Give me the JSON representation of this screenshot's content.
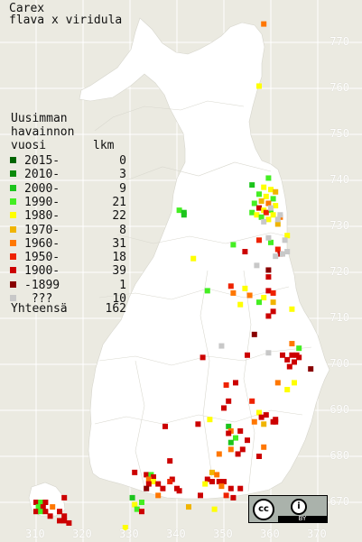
{
  "title": {
    "line1": "Carex",
    "line2": "flava x viridula"
  },
  "legend": {
    "header": [
      "Uusimman",
      "havainnon",
      "vuosi"
    ],
    "count_header": "lkm",
    "rows": [
      {
        "label": "2015-",
        "count": "0",
        "color": "#006400"
      },
      {
        "label": "2010-",
        "count": "3",
        "color": "#0a8a0a"
      },
      {
        "label": "2000-",
        "count": "9",
        "color": "#1cc41c"
      },
      {
        "label": "1990-",
        "count": "21",
        "color": "#44ee22"
      },
      {
        "label": "1980-",
        "count": "22",
        "color": "#ffff00"
      },
      {
        "label": "1970-",
        "count": "8",
        "color": "#f0b400"
      },
      {
        "label": "1960-",
        "count": "31",
        "color": "#ff7700"
      },
      {
        "label": "1950-",
        "count": "18",
        "color": "#ee2200"
      },
      {
        "label": "1900-",
        "count": "39",
        "color": "#cc0000"
      },
      {
        "label": "-1899",
        "count": "1",
        "color": "#880000"
      },
      {
        "label": " ???",
        "count": "10",
        "color": "#c8c8c8"
      }
    ],
    "total_label": "Yhteensä",
    "total_count": "162"
  },
  "grid_ticks": {
    "north": [
      "770",
      "760",
      "750",
      "740",
      "730",
      "720",
      "710",
      "700",
      "690",
      "680",
      "670"
    ],
    "east": [
      "310",
      "320",
      "330",
      "340",
      "350",
      "360",
      "370"
    ]
  },
  "license": {
    "cc": "cc",
    "by": "BY"
  },
  "observations": [
    {
      "e": 358.5,
      "n": 774,
      "p": 6
    },
    {
      "e": 357.5,
      "n": 760.5,
      "p": 4
    },
    {
      "e": 359.5,
      "n": 740.5,
      "p": 3
    },
    {
      "e": 356,
      "n": 739,
      "p": 2
    },
    {
      "e": 358.5,
      "n": 738.5,
      "p": 4
    },
    {
      "e": 360,
      "n": 738,
      "p": 4
    },
    {
      "e": 361,
      "n": 737.5,
      "p": 5
    },
    {
      "e": 357.5,
      "n": 737,
      "p": 3
    },
    {
      "e": 359,
      "n": 736.5,
      "p": 4
    },
    {
      "e": 360.5,
      "n": 736,
      "p": 3
    },
    {
      "e": 358,
      "n": 735.5,
      "p": 5
    },
    {
      "e": 356.5,
      "n": 735,
      "p": 3
    },
    {
      "e": 359.5,
      "n": 735,
      "p": 6
    },
    {
      "e": 361,
      "n": 734.5,
      "p": 4
    },
    {
      "e": 357.5,
      "n": 734,
      "p": 8
    },
    {
      "e": 358.5,
      "n": 733.5,
      "p": 4
    },
    {
      "e": 360,
      "n": 733.5,
      "p": 3
    },
    {
      "e": 356,
      "n": 733,
      "p": 3
    },
    {
      "e": 359,
      "n": 733,
      "p": 7
    },
    {
      "e": 357,
      "n": 732.5,
      "p": 4
    },
    {
      "e": 360.5,
      "n": 732.5,
      "p": 4
    },
    {
      "e": 362,
      "n": 732,
      "p": 6
    },
    {
      "e": 358,
      "n": 732,
      "p": 3
    },
    {
      "e": 359.5,
      "n": 731.5,
      "p": 4
    },
    {
      "e": 361.5,
      "n": 730.5,
      "p": 5
    },
    {
      "e": 363.5,
      "n": 728,
      "p": 4
    },
    {
      "e": 363,
      "n": 727,
      "p": 10
    },
    {
      "e": 357.5,
      "n": 727,
      "p": 7
    },
    {
      "e": 360,
      "n": 726.5,
      "p": 3
    },
    {
      "e": 352,
      "n": 726,
      "p": 3
    },
    {
      "e": 354.5,
      "n": 724.5,
      "p": 8
    },
    {
      "e": 361.5,
      "n": 725,
      "p": 7
    },
    {
      "e": 362,
      "n": 724,
      "p": 8
    },
    {
      "e": 361,
      "n": 723.5,
      "p": 10
    },
    {
      "e": 343.5,
      "n": 723,
      "p": 4
    },
    {
      "e": 340.5,
      "n": 733.5,
      "p": 3
    },
    {
      "e": 341.5,
      "n": 733,
      "p": 2
    },
    {
      "e": 341.5,
      "n": 732.5,
      "p": 2
    },
    {
      "e": 359.5,
      "n": 720.5,
      "p": 9
    },
    {
      "e": 359.5,
      "n": 719,
      "p": 8
    },
    {
      "e": 351.5,
      "n": 717,
      "p": 7
    },
    {
      "e": 352,
      "n": 715.5,
      "p": 6
    },
    {
      "e": 354.5,
      "n": 716.5,
      "p": 4
    },
    {
      "e": 355.5,
      "n": 715,
      "p": 6
    },
    {
      "e": 359.5,
      "n": 716,
      "p": 8
    },
    {
      "e": 360.5,
      "n": 715.5,
      "p": 7
    },
    {
      "e": 358.5,
      "n": 714.5,
      "p": 4
    },
    {
      "e": 360.5,
      "n": 713.5,
      "p": 5
    },
    {
      "e": 357.5,
      "n": 713.5,
      "p": 3
    },
    {
      "e": 353.5,
      "n": 713,
      "p": 4
    },
    {
      "e": 360.5,
      "n": 711.5,
      "p": 8
    },
    {
      "e": 359.5,
      "n": 710.5,
      "p": 8
    },
    {
      "e": 364.5,
      "n": 712,
      "p": 4
    },
    {
      "e": 346.5,
      "n": 716,
      "p": 3
    },
    {
      "e": 356.5,
      "n": 706.5,
      "p": 9
    },
    {
      "e": 364.5,
      "n": 704.5,
      "p": 6
    },
    {
      "e": 366,
      "n": 703.5,
      "p": 3
    },
    {
      "e": 362.5,
      "n": 702,
      "p": 8
    },
    {
      "e": 355,
      "n": 702,
      "p": 8
    },
    {
      "e": 359.5,
      "n": 702.5,
      "p": 10
    },
    {
      "e": 364.5,
      "n": 702,
      "p": 8
    },
    {
      "e": 365.5,
      "n": 702,
      "p": 8
    },
    {
      "e": 366,
      "n": 701.5,
      "p": 8
    },
    {
      "e": 363.5,
      "n": 701,
      "p": 8
    },
    {
      "e": 365,
      "n": 700.5,
      "p": 8
    },
    {
      "e": 364,
      "n": 699.5,
      "p": 8
    },
    {
      "e": 368.5,
      "n": 699,
      "p": 9
    },
    {
      "e": 345.5,
      "n": 701.5,
      "p": 8
    },
    {
      "e": 352.5,
      "n": 696,
      "p": 8
    },
    {
      "e": 350.5,
      "n": 695.5,
      "p": 7
    },
    {
      "e": 361.5,
      "n": 696,
      "p": 6
    },
    {
      "e": 365,
      "n": 696,
      "p": 4
    },
    {
      "e": 363.5,
      "n": 694.5,
      "p": 4
    },
    {
      "e": 351,
      "n": 692,
      "p": 8
    },
    {
      "e": 356,
      "n": 692,
      "p": 7
    },
    {
      "e": 350,
      "n": 690.5,
      "p": 8
    },
    {
      "e": 357.5,
      "n": 689.5,
      "p": 4
    },
    {
      "e": 358,
      "n": 688.5,
      "p": 8
    },
    {
      "e": 359,
      "n": 689,
      "p": 8
    },
    {
      "e": 361,
      "n": 688,
      "p": 8
    },
    {
      "e": 360.5,
      "n": 687.5,
      "p": 8
    },
    {
      "e": 361,
      "n": 687.5,
      "p": 8
    },
    {
      "e": 356.5,
      "n": 687.5,
      "p": 6
    },
    {
      "e": 358.5,
      "n": 687,
      "p": 5
    },
    {
      "e": 347,
      "n": 688,
      "p": 4
    },
    {
      "e": 344.5,
      "n": 687,
      "p": 8
    },
    {
      "e": 337.5,
      "n": 686.5,
      "p": 8
    },
    {
      "e": 351,
      "n": 686.5,
      "p": 2
    },
    {
      "e": 351.5,
      "n": 685.5,
      "p": 6
    },
    {
      "e": 351,
      "n": 685,
      "p": 8
    },
    {
      "e": 353.5,
      "n": 685.5,
      "p": 8
    },
    {
      "e": 352.5,
      "n": 684,
      "p": 3
    },
    {
      "e": 351.5,
      "n": 683,
      "p": 2
    },
    {
      "e": 355,
      "n": 683.5,
      "p": 8
    },
    {
      "e": 354,
      "n": 681.5,
      "p": 8
    },
    {
      "e": 351.5,
      "n": 681.5,
      "p": 6
    },
    {
      "e": 358.5,
      "n": 682,
      "p": 6
    },
    {
      "e": 357.5,
      "n": 680,
      "p": 8
    },
    {
      "e": 353,
      "n": 680.5,
      "p": 8
    },
    {
      "e": 349,
      "n": 680.5,
      "p": 6
    },
    {
      "e": 338.5,
      "n": 679,
      "p": 8
    },
    {
      "e": 331,
      "n": 676.5,
      "p": 8
    },
    {
      "e": 333.5,
      "n": 676,
      "p": 8
    },
    {
      "e": 334.5,
      "n": 676,
      "p": 3
    },
    {
      "e": 335,
      "n": 675.5,
      "p": 8
    },
    {
      "e": 334,
      "n": 675,
      "p": 6
    },
    {
      "e": 335,
      "n": 674.5,
      "p": 4
    },
    {
      "e": 334,
      "n": 674,
      "p": 8
    },
    {
      "e": 333.5,
      "n": 673,
      "p": 9
    },
    {
      "e": 337,
      "n": 673,
      "p": 8
    },
    {
      "e": 336,
      "n": 674,
      "p": 8
    },
    {
      "e": 339,
      "n": 675,
      "p": 8
    },
    {
      "e": 338.5,
      "n": 674.5,
      "p": 7
    },
    {
      "e": 340,
      "n": 673,
      "p": 8
    },
    {
      "e": 340.5,
      "n": 672.5,
      "p": 8
    },
    {
      "e": 347.5,
      "n": 676.5,
      "p": 5
    },
    {
      "e": 348.5,
      "n": 676,
      "p": 6
    },
    {
      "e": 346.5,
      "n": 675,
      "p": 8
    },
    {
      "e": 347.5,
      "n": 674.5,
      "p": 8
    },
    {
      "e": 349,
      "n": 674.5,
      "p": 8
    },
    {
      "e": 350,
      "n": 674.5,
      "p": 8
    },
    {
      "e": 349.5,
      "n": 673.5,
      "p": 6
    },
    {
      "e": 346,
      "n": 674,
      "p": 4
    },
    {
      "e": 351.5,
      "n": 673,
      "p": 8
    },
    {
      "e": 353.5,
      "n": 673,
      "p": 8
    },
    {
      "e": 336,
      "n": 671.5,
      "p": 6
    },
    {
      "e": 345,
      "n": 671.5,
      "p": 8
    },
    {
      "e": 350.5,
      "n": 671.5,
      "p": 7
    },
    {
      "e": 352,
      "n": 671,
      "p": 8
    },
    {
      "e": 330.5,
      "n": 671,
      "p": 2
    },
    {
      "e": 331,
      "n": 669.5,
      "p": 4
    },
    {
      "e": 332.5,
      "n": 670,
      "p": 3
    },
    {
      "e": 331.5,
      "n": 668.5,
      "p": 3
    },
    {
      "e": 332.5,
      "n": 668,
      "p": 8
    },
    {
      "e": 342.5,
      "n": 669,
      "p": 5
    },
    {
      "e": 348,
      "n": 668.5,
      "p": 4
    },
    {
      "e": 329,
      "n": 664.5,
      "p": 4
    },
    {
      "e": 310,
      "n": 670,
      "p": 8
    },
    {
      "e": 311,
      "n": 670,
      "p": 3
    },
    {
      "e": 312,
      "n": 670,
      "p": 8
    },
    {
      "e": 310.5,
      "n": 669,
      "p": 3
    },
    {
      "e": 311.5,
      "n": 669,
      "p": 8
    },
    {
      "e": 310,
      "n": 668,
      "p": 8
    },
    {
      "e": 311,
      "n": 668,
      "p": 3
    },
    {
      "e": 312,
      "n": 668,
      "p": 8
    },
    {
      "e": 313.5,
      "n": 669,
      "p": 6
    },
    {
      "e": 313,
      "n": 667,
      "p": 8
    },
    {
      "e": 316,
      "n": 671,
      "p": 8
    },
    {
      "e": 315,
      "n": 668,
      "p": 8
    },
    {
      "e": 316,
      "n": 667,
      "p": 8
    },
    {
      "e": 316,
      "n": 666,
      "p": 8
    },
    {
      "e": 315,
      "n": 666,
      "p": 8
    },
    {
      "e": 317,
      "n": 665.5,
      "p": 8
    },
    {
      "e": 349.5,
      "n": 704,
      "p": 10
    },
    {
      "e": 363.5,
      "n": 724.5,
      "p": 10
    },
    {
      "e": 362.5,
      "n": 724,
      "p": 10
    },
    {
      "e": 359.5,
      "n": 727.5,
      "p": 10
    },
    {
      "e": 357,
      "n": 721.5,
      "p": 10
    },
    {
      "e": 362,
      "n": 732.5,
      "p": 10
    },
    {
      "e": 360,
      "n": 734,
      "p": 10
    },
    {
      "e": 358.5,
      "n": 731,
      "p": 10
    },
    {
      "e": 361.5,
      "n": 731.5,
      "p": 10
    }
  ]
}
